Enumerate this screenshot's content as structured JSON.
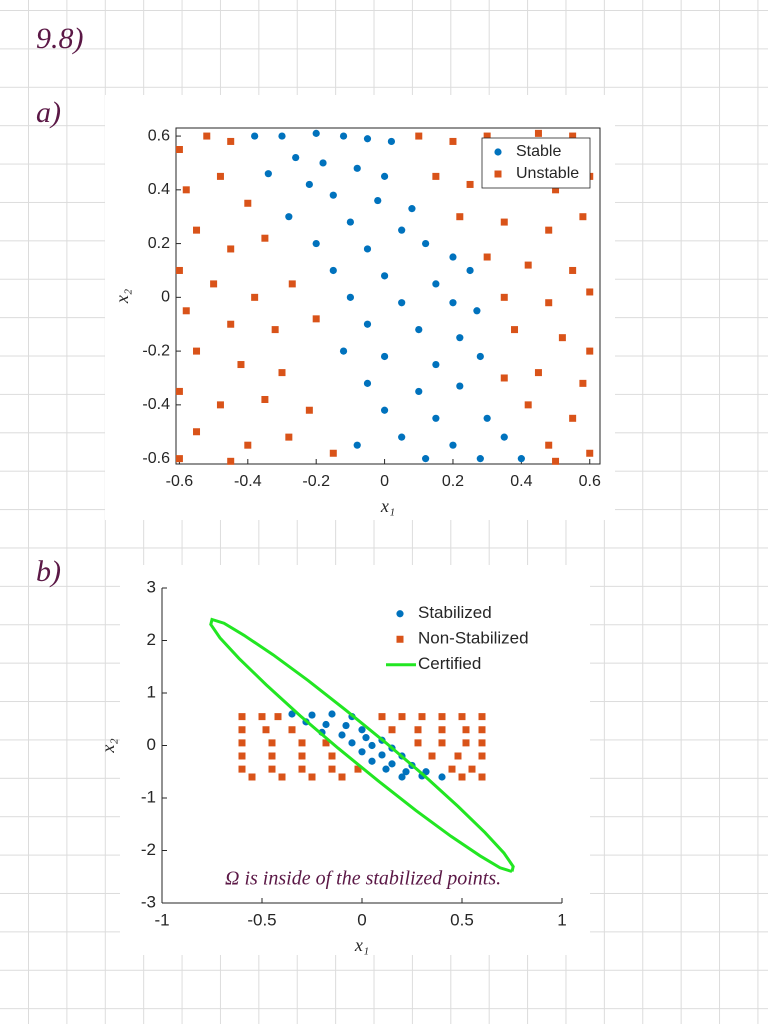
{
  "notes": {
    "problem": "9.8)",
    "part_a": "a)",
    "part_b": "b)"
  },
  "chart_data": [
    {
      "type": "scatter",
      "x_label": "x₁",
      "y_label": "x₂",
      "xlim": [
        -0.61,
        0.63
      ],
      "ylim": [
        -0.62,
        0.63
      ],
      "xticks": [
        -0.6,
        -0.4,
        -0.2,
        0,
        0.2,
        0.4,
        0.6
      ],
      "yticks": [
        -0.6,
        -0.4,
        -0.2,
        0,
        0.2,
        0.4,
        0.6
      ],
      "grid": false,
      "box": true,
      "legend": "northeast",
      "series": [
        {
          "name": "Stable",
          "color": "#0072bd",
          "marker": "circle",
          "x": [
            -0.38,
            -0.3,
            -0.2,
            -0.12,
            -0.05,
            0.02,
            -0.26,
            -0.18,
            -0.08,
            0.0,
            -0.34,
            -0.22,
            -0.15,
            -0.02,
            0.08,
            -0.28,
            -0.1,
            0.05,
            -0.2,
            -0.05,
            0.12,
            0.2,
            -0.15,
            0.0,
            0.15,
            0.25,
            -0.1,
            0.05,
            0.2,
            0.27,
            -0.05,
            0.1,
            0.22,
            -0.12,
            0.0,
            0.15,
            0.28,
            -0.05,
            0.1,
            0.22,
            0.0,
            0.15,
            0.3,
            0.05,
            0.2,
            0.35,
            0.12,
            0.28,
            0.4,
            -0.08
          ],
          "y": [
            0.6,
            0.6,
            0.61,
            0.6,
            0.59,
            0.58,
            0.52,
            0.5,
            0.48,
            0.45,
            0.46,
            0.42,
            0.38,
            0.36,
            0.33,
            0.3,
            0.28,
            0.25,
            0.2,
            0.18,
            0.2,
            0.15,
            0.1,
            0.08,
            0.05,
            0.1,
            0.0,
            -0.02,
            -0.02,
            -0.05,
            -0.1,
            -0.12,
            -0.15,
            -0.2,
            -0.22,
            -0.25,
            -0.22,
            -0.32,
            -0.35,
            -0.33,
            -0.42,
            -0.45,
            -0.45,
            -0.52,
            -0.55,
            -0.52,
            -0.6,
            -0.6,
            -0.6,
            -0.55
          ]
        },
        {
          "name": "Unstable",
          "color": "#d95319",
          "marker": "square",
          "x": [
            -0.6,
            -0.52,
            -0.45,
            -0.58,
            -0.48,
            -0.4,
            -0.55,
            -0.45,
            -0.35,
            -0.6,
            -0.5,
            -0.38,
            -0.27,
            -0.58,
            -0.45,
            -0.32,
            -0.2,
            -0.55,
            -0.42,
            -0.3,
            -0.6,
            -0.48,
            -0.35,
            -0.22,
            -0.55,
            -0.4,
            -0.28,
            -0.15,
            -0.6,
            -0.45,
            0.1,
            0.2,
            0.3,
            0.45,
            0.55,
            0.15,
            0.25,
            0.38,
            0.5,
            0.6,
            0.22,
            0.35,
            0.48,
            0.58,
            0.3,
            0.42,
            0.55,
            0.35,
            0.48,
            0.6,
            0.38,
            0.52,
            0.6,
            0.35,
            0.45,
            0.58,
            0.42,
            0.55,
            0.48,
            0.6,
            0.5
          ],
          "y": [
            0.55,
            0.6,
            0.58,
            0.4,
            0.45,
            0.35,
            0.25,
            0.18,
            0.22,
            0.1,
            0.05,
            0.0,
            0.05,
            -0.05,
            -0.1,
            -0.12,
            -0.08,
            -0.2,
            -0.25,
            -0.28,
            -0.35,
            -0.4,
            -0.38,
            -0.42,
            -0.5,
            -0.55,
            -0.52,
            -0.58,
            -0.6,
            -0.61,
            0.6,
            0.58,
            0.6,
            0.61,
            0.6,
            0.45,
            0.42,
            0.48,
            0.4,
            0.45,
            0.3,
            0.28,
            0.25,
            0.3,
            0.15,
            0.12,
            0.1,
            0.0,
            -0.02,
            0.02,
            -0.12,
            -0.15,
            -0.2,
            -0.3,
            -0.28,
            -0.32,
            -0.4,
            -0.45,
            -0.55,
            -0.58,
            -0.61
          ]
        }
      ]
    },
    {
      "type": "scatter",
      "x_label": "x₁",
      "y_label": "x₂",
      "xlim": [
        -1,
        1
      ],
      "ylim": [
        -3,
        3
      ],
      "xticks": [
        -1,
        -0.5,
        0,
        0.5,
        1
      ],
      "yticks": [
        -3,
        -2,
        -1,
        0,
        1,
        2,
        3
      ],
      "grid": false,
      "box": false,
      "legend": "northeast",
      "annotation": "Ω is inside of the stabilized points.",
      "series": [
        {
          "name": "Stabilized",
          "color": "#0072bd",
          "marker": "circle",
          "x": [
            -0.35,
            -0.25,
            -0.15,
            -0.05,
            -0.28,
            -0.18,
            -0.08,
            0.0,
            -0.2,
            -0.1,
            0.02,
            0.1,
            -0.05,
            0.05,
            0.15,
            0.0,
            0.1,
            0.2,
            0.05,
            0.15,
            0.25,
            0.12,
            0.22,
            0.32,
            0.2,
            0.3,
            0.4
          ],
          "y": [
            0.6,
            0.58,
            0.6,
            0.55,
            0.45,
            0.4,
            0.38,
            0.3,
            0.25,
            0.2,
            0.15,
            0.1,
            0.05,
            0.0,
            -0.05,
            -0.12,
            -0.18,
            -0.2,
            -0.3,
            -0.35,
            -0.38,
            -0.45,
            -0.5,
            -0.5,
            -0.6,
            -0.58,
            -0.6
          ]
        },
        {
          "name": "Non-Stabilized",
          "color": "#d95319",
          "marker": "square",
          "x": [
            -0.6,
            -0.5,
            -0.42,
            0.1,
            0.2,
            0.3,
            0.4,
            0.5,
            0.6,
            -0.6,
            -0.48,
            -0.35,
            0.15,
            0.28,
            0.4,
            0.52,
            0.6,
            -0.6,
            -0.45,
            -0.3,
            -0.18,
            0.28,
            0.4,
            0.52,
            0.6,
            -0.6,
            -0.45,
            -0.3,
            -0.15,
            0.35,
            0.48,
            0.6,
            -0.6,
            -0.45,
            -0.3,
            -0.15,
            -0.02,
            0.45,
            0.55,
            -0.55,
            -0.4,
            -0.25,
            -0.1,
            0.5,
            0.6
          ],
          "y": [
            0.55,
            0.55,
            0.55,
            0.55,
            0.55,
            0.55,
            0.55,
            0.55,
            0.55,
            0.3,
            0.3,
            0.3,
            0.3,
            0.3,
            0.3,
            0.3,
            0.3,
            0.05,
            0.05,
            0.05,
            0.05,
            0.05,
            0.05,
            0.05,
            0.05,
            -0.2,
            -0.2,
            -0.2,
            -0.2,
            -0.2,
            -0.2,
            -0.2,
            -0.45,
            -0.45,
            -0.45,
            -0.45,
            -0.45,
            -0.45,
            -0.45,
            -0.6,
            -0.6,
            -0.6,
            -0.6,
            -0.6,
            -0.6
          ]
        },
        {
          "name": "Certified",
          "color": "#22e622",
          "x": [
            0.75,
            0.756,
            0.71,
            0.615,
            0.48,
            0.31,
            0.12,
            -0.08,
            -0.27,
            -0.445,
            -0.59,
            -0.69,
            -0.75,
            -0.756,
            -0.71,
            -0.615,
            -0.48,
            -0.31,
            -0.12,
            0.08,
            0.27,
            0.445,
            0.59,
            0.69,
            0.75
          ],
          "y": [
            -2.4,
            -2.305,
            -2.05,
            -1.66,
            -1.16,
            -0.57,
            0.05,
            0.67,
            1.24,
            1.73,
            2.1,
            2.33,
            2.4,
            2.305,
            2.05,
            1.66,
            1.16,
            0.57,
            -0.05,
            -0.67,
            -1.24,
            -1.73,
            -2.1,
            -2.33,
            -2.4
          ]
        }
      ]
    }
  ]
}
